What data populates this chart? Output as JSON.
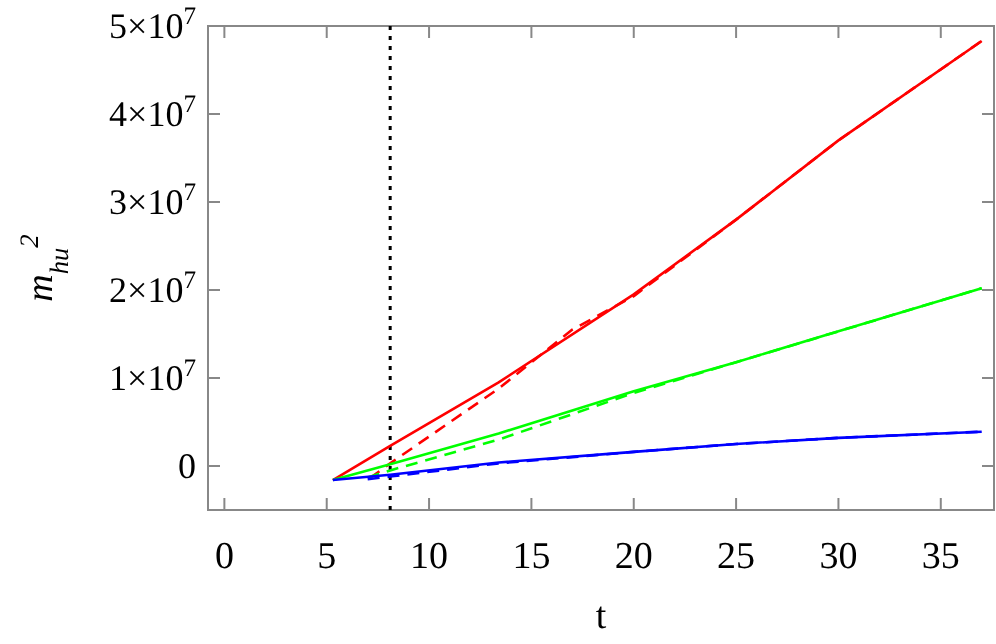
{
  "chart_data": {
    "type": "line",
    "xlabel": "t",
    "ylabel": "m$_{hu}$$^{2}$",
    "xlim": [
      -0.8,
      37.6
    ],
    "ylim": [
      -5000000,
      50000000
    ],
    "xticks": [
      0,
      5,
      10,
      15,
      20,
      25,
      30,
      35
    ],
    "yticks": [
      {
        "value": 0,
        "label": "0"
      },
      {
        "value": 10000000,
        "label": "1×10$^{7}$"
      },
      {
        "value": 20000000,
        "label": "2×10$^{7}$"
      },
      {
        "value": 30000000,
        "label": "3×10$^{7}$"
      },
      {
        "value": 40000000,
        "label": "4×10$^{7}$"
      },
      {
        "value": 50000000,
        "label": "5×10$^{7}$"
      }
    ],
    "grid": false,
    "ref_lines": [
      {
        "axis": "x",
        "value": 8.1,
        "color": "#000000",
        "line_style": "dotted"
      }
    ],
    "series": [
      {
        "color": "#ff0000",
        "line_style": "solid",
        "x": [
          5.3,
          8.1,
          13.4,
          20,
          25,
          30,
          37
        ],
        "values": [
          -1600000,
          2300000,
          9500000,
          19500000,
          28000000,
          37000000,
          48300000
        ]
      },
      {
        "color": "#ff0000",
        "line_style": "dashed",
        "x": [
          7.1,
          8.1,
          13.4,
          17,
          20,
          25,
          30,
          37
        ],
        "values": [
          -1400000,
          300000,
          8800000,
          15500000,
          19300000,
          28000000,
          37000000,
          48300000
        ]
      },
      {
        "color": "#00ff00",
        "line_style": "solid",
        "x": [
          5.3,
          8.1,
          13.4,
          20,
          25,
          30,
          37
        ],
        "values": [
          -1600000,
          200000,
          3700000,
          8500000,
          11800000,
          15300000,
          20200000
        ]
      },
      {
        "color": "#00ff00",
        "line_style": "dashed",
        "x": [
          7,
          8.1,
          13.4,
          20,
          25,
          30,
          37
        ],
        "values": [
          -1300000,
          -500000,
          3000000,
          8300000,
          11800000,
          15300000,
          20200000
        ]
      },
      {
        "color": "#0000ff",
        "line_style": "solid",
        "x": [
          5.3,
          8.1,
          13.4,
          20,
          25,
          30,
          37
        ],
        "values": [
          -1600000,
          -1000000,
          400000,
          1600000,
          2500000,
          3200000,
          3900000
        ]
      },
      {
        "color": "#0000ff",
        "line_style": "dashed",
        "x": [
          7,
          8.1,
          13.4,
          20,
          25,
          30,
          37
        ],
        "values": [
          -1500000,
          -1200000,
          300000,
          1600000,
          2500000,
          3200000,
          3900000
        ]
      }
    ]
  }
}
